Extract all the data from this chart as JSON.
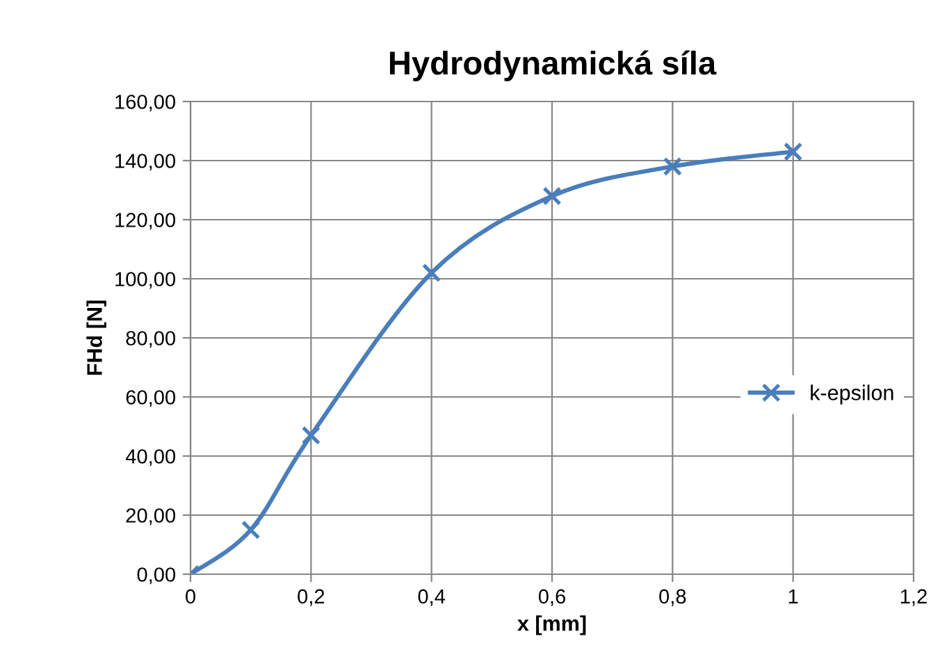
{
  "chart_data": {
    "type": "line",
    "title": "Hydrodynamická síla",
    "xlabel": "x [mm]",
    "ylabel": "FHd [N]",
    "x": [
      0,
      0.1,
      0.2,
      0.4,
      0.6,
      0.8,
      1
    ],
    "series": [
      {
        "name": "k-epsilon",
        "color": "#4a7ebb",
        "values": [
          0,
          15,
          47,
          102,
          128,
          138,
          143
        ]
      }
    ],
    "xlim": [
      0,
      1.2
    ],
    "ylim": [
      0,
      160
    ],
    "xticks": [
      0,
      {
        "value": 0.2,
        "label": "0,2"
      },
      {
        "value": 0.4,
        "label": "0,4"
      },
      {
        "value": 0.6,
        "label": "0,6"
      },
      {
        "value": 0.8,
        "label": "0,8"
      },
      1,
      {
        "value": 1.2,
        "label": "1,2"
      }
    ],
    "yticks": [
      {
        "value": 0,
        "label": "0,00"
      },
      {
        "value": 20,
        "label": "20,00"
      },
      {
        "value": 40,
        "label": "40,00"
      },
      {
        "value": 60,
        "label": "60,00"
      },
      {
        "value": 80,
        "label": "80,00"
      },
      {
        "value": 100,
        "label": "100,00"
      },
      {
        "value": 120,
        "label": "120,00"
      },
      {
        "value": 140,
        "label": "140,00"
      },
      {
        "value": 160,
        "label": "160,00"
      }
    ],
    "grid": true,
    "legend": "right",
    "marker": "cross",
    "line_style": "solid"
  }
}
